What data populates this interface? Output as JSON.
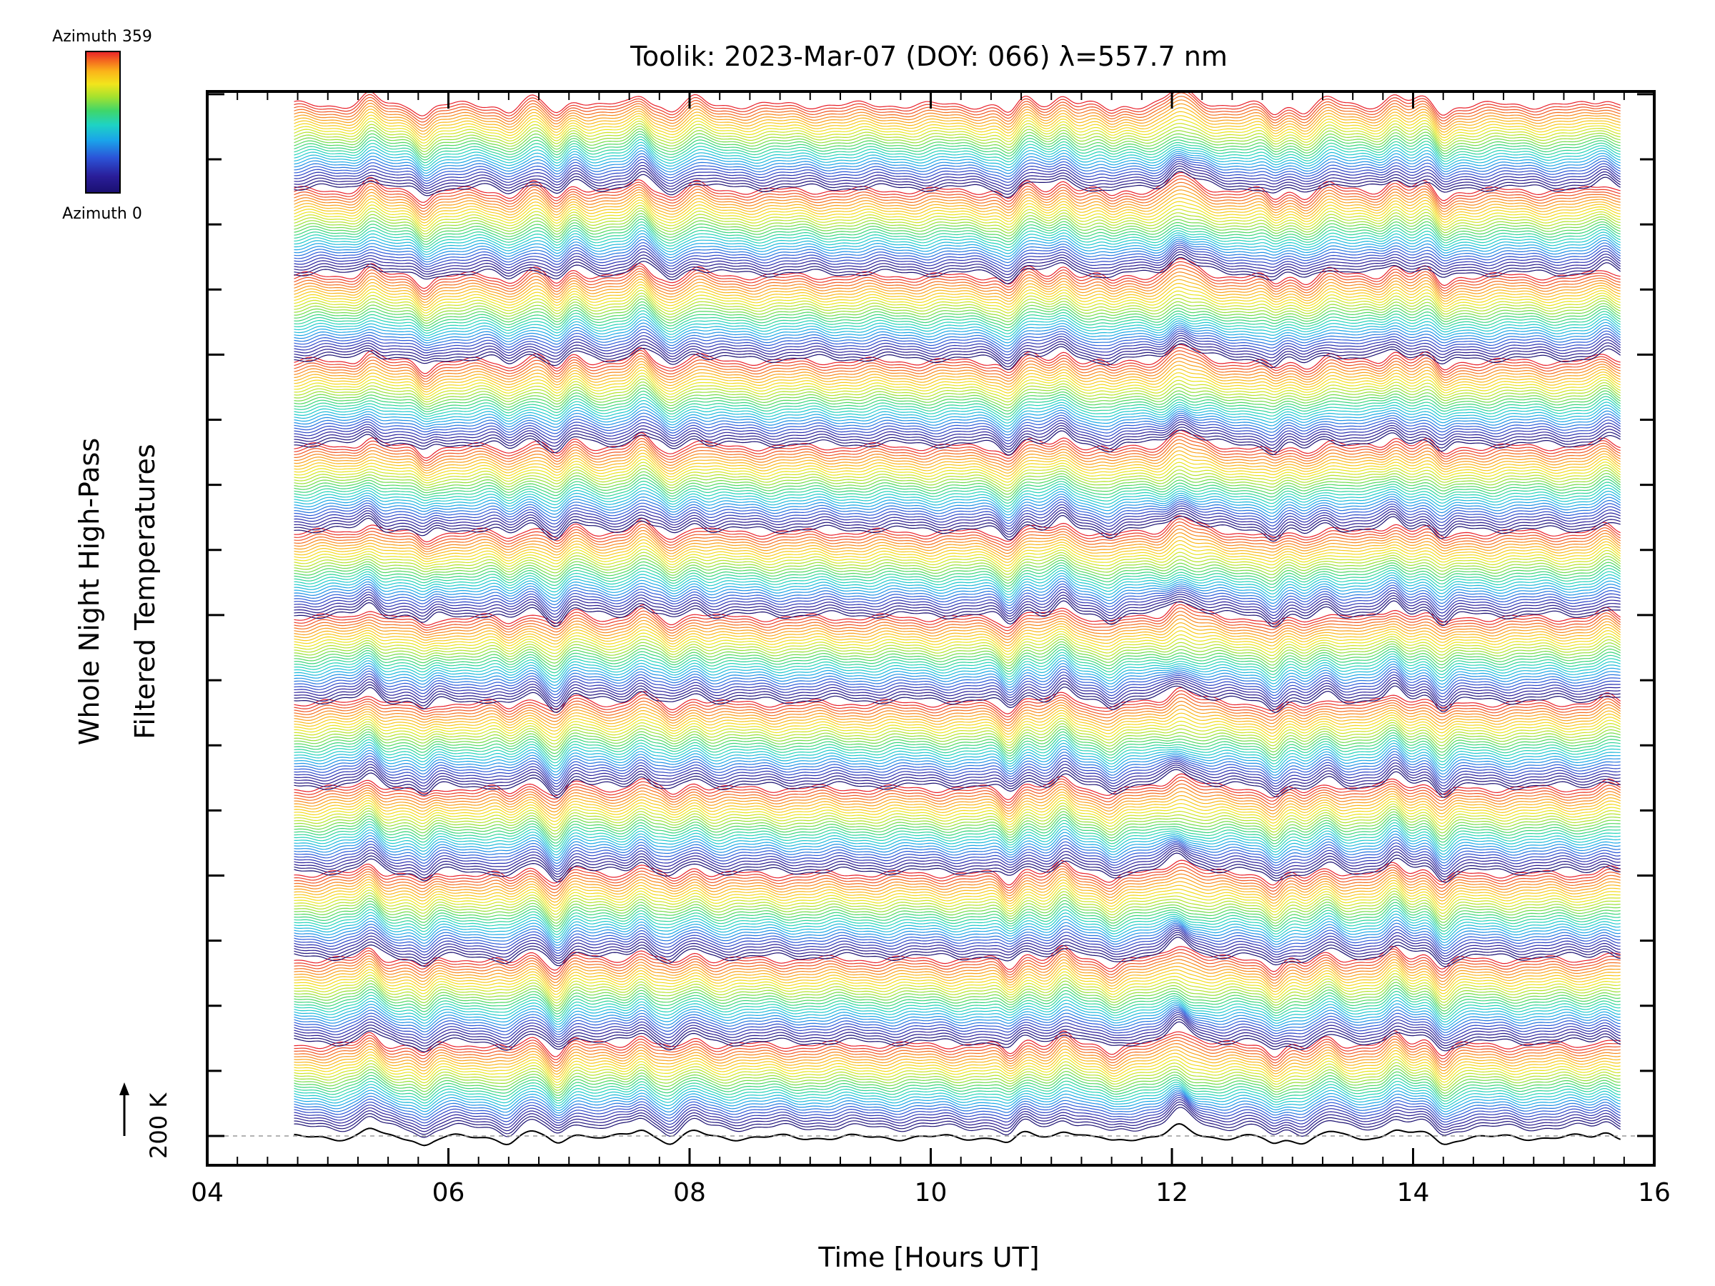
{
  "chart_data": {
    "type": "line",
    "title": "Toolik: 2023-Mar-07 (DOY: 066) λ=557.7 nm",
    "xlabel": "Time [Hours UT]",
    "ylabel_line1": "Whole Night High-Pass",
    "ylabel_line2": "Filtered Temperatures",
    "xlim": [
      4,
      16
    ],
    "x_ticks": [
      "04",
      "06",
      "08",
      "10",
      "12",
      "14",
      "16"
    ],
    "x_tick_values": [
      4,
      6,
      8,
      10,
      12,
      14,
      16
    ],
    "x_data_range": [
      4.72,
      15.72
    ],
    "y_tick_count": 17,
    "scale_label": "200 K",
    "legend": {
      "top_label": "Azimuth 359",
      "bottom_label": "Azimuth 0",
      "colormap": "rainbow",
      "colors": [
        "#e8202a",
        "#f46d1e",
        "#fbb31a",
        "#f2e51c",
        "#a6e22e",
        "#3fd66a",
        "#1ed3c4",
        "#1aa3ea",
        "#2b54d8",
        "#2a1e9a",
        "#1a0f70"
      ]
    },
    "series_description": "Stacked azimuth traces offset vertically; each group sweeps azimuth 0-359",
    "series_groups": 12,
    "traces_per_group": 30,
    "baseline_color": "#000000",
    "shared_features": {
      "peak_times": [
        5.35,
        6.7,
        7.05,
        7.6,
        8.05,
        10.8,
        11.1,
        12.05,
        13.3,
        13.85,
        14.1,
        15.6
      ],
      "dip_times": [
        5.8,
        6.5,
        6.9,
        7.85,
        10.65,
        11.5,
        12.85,
        13.1,
        14.25
      ]
    }
  }
}
